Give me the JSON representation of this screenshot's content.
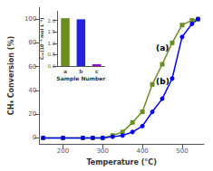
{
  "chart_data": [
    {
      "type": "line",
      "xlabel": "Temperature (°C)",
      "ylabel": "CH₄ Conversion (%)",
      "annotations": [
        "(a)",
        "(b)"
      ],
      "xlim": [
        140,
        555
      ],
      "ylim": [
        -5,
        110
      ],
      "xticks": [
        200,
        300,
        400,
        500
      ],
      "yticks": [
        0,
        20,
        40,
        60,
        80,
        100
      ],
      "grid": false,
      "series": [
        {
          "x": [
            150,
            200,
            250,
            275,
            300,
            325,
            350,
            375,
            400,
            425,
            450,
            475,
            500,
            525,
            540
          ],
          "values": [
            0,
            0,
            0,
            0,
            0,
            2,
            5,
            13,
            22,
            45,
            62,
            80,
            95,
            99,
            100
          ],
          "color": "#6b8e23",
          "marker": "square"
        },
        {
          "x": [
            150,
            200,
            250,
            275,
            300,
            325,
            350,
            375,
            400,
            425,
            450,
            475,
            500,
            525,
            540
          ],
          "values": [
            0,
            0,
            0,
            0,
            0,
            1,
            2,
            5,
            10,
            22,
            33,
            50,
            85,
            96,
            100
          ],
          "color": "#0000ee",
          "marker": "circle"
        }
      ]
    },
    {
      "type": "bar",
      "xlabel": "Sample Number",
      "ylabel": "Cₕₖ(10⁻³ mol L⁻¹)",
      "categories": [
        "a",
        "b",
        "c"
      ],
      "values": [
        2.1,
        2.05,
        0.08
      ],
      "colors": [
        "#6b8e23",
        "#2222dd",
        "#9400d3"
      ],
      "ylim": [
        0,
        2.4
      ],
      "yticks": [
        {
          "value": 0.0,
          "label": "0.0"
        },
        0.5,
        {
          "value": 1.0,
          "label": "1.0"
        },
        1.5,
        {
          "value": 2.0,
          "label": "2.0"
        }
      ],
      "grid": false
    }
  ]
}
